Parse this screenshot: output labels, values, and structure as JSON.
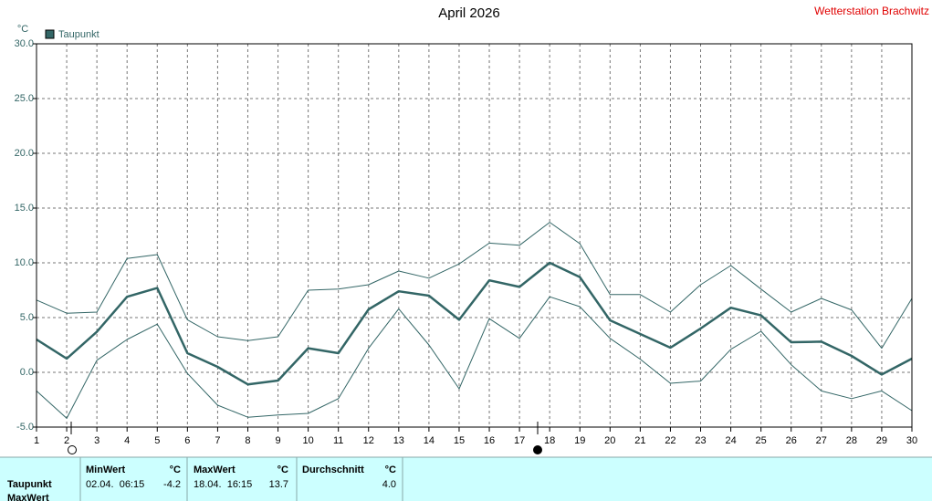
{
  "chart_data": {
    "type": "line",
    "title": "April 2026",
    "source": "Wetterstation Brachwitz",
    "y_unit": "°C",
    "x": [
      1,
      2,
      3,
      4,
      5,
      6,
      7,
      8,
      9,
      10,
      11,
      12,
      13,
      14,
      15,
      16,
      17,
      18,
      19,
      20,
      21,
      22,
      23,
      24,
      25,
      26,
      27,
      28,
      29,
      30
    ],
    "xlim": [
      1,
      30
    ],
    "xticks": [
      1,
      2,
      3,
      4,
      5,
      6,
      7,
      8,
      9,
      10,
      11,
      12,
      13,
      14,
      15,
      16,
      17,
      18,
      19,
      20,
      21,
      22,
      23,
      24,
      25,
      26,
      27,
      28,
      29,
      30
    ],
    "ylim": [
      -5,
      30
    ],
    "yticks": [
      {
        "value": -5,
        "label": "-5.0"
      },
      {
        "value": 0,
        "label": "0.0"
      },
      {
        "value": 5,
        "label": "5.0"
      },
      {
        "value": 10,
        "label": "10.0"
      },
      {
        "value": 15,
        "label": "15.0"
      },
      {
        "value": 20,
        "label": "20.0"
      },
      {
        "value": 25,
        "label": "25.0"
      },
      {
        "value": 30,
        "label": "30.0"
      }
    ],
    "grid": true,
    "series": [
      {
        "name": "Taupunkt",
        "color": "#336666",
        "values": [
          3.0,
          1.25,
          3.7,
          6.9,
          7.7,
          1.75,
          0.5,
          -1.1,
          -0.75,
          2.2,
          1.75,
          5.75,
          7.4,
          7.0,
          4.8,
          8.4,
          7.8,
          10.0,
          8.7,
          4.75,
          3.5,
          2.25,
          4.0,
          5.9,
          5.2,
          2.75,
          2.8,
          1.5,
          -0.2,
          1.25
        ]
      },
      {
        "color": "#336666",
        "values": [
          6.6,
          5.4,
          5.5,
          10.4,
          10.75,
          4.8,
          3.25,
          2.9,
          3.25,
          7.5,
          7.6,
          8.0,
          9.25,
          8.6,
          9.9,
          11.8,
          11.6,
          13.7,
          11.75,
          7.1,
          7.1,
          5.5,
          8.0,
          9.75,
          7.6,
          5.5,
          6.75,
          5.7,
          2.2,
          6.75
        ]
      },
      {
        "color": "#336666",
        "values": [
          -1.7,
          -4.2,
          1.1,
          3.0,
          4.4,
          -0.1,
          -3.0,
          -4.1,
          -3.9,
          -3.75,
          -2.4,
          2.2,
          5.8,
          2.5,
          -1.5,
          4.9,
          3.1,
          6.9,
          6.0,
          3.1,
          1.2,
          -1.0,
          -0.8,
          2.1,
          3.75,
          0.7,
          -1.7,
          -2.4,
          -1.7,
          -3.5
        ]
      }
    ]
  },
  "table": {
    "columns": [
      "MinWert",
      "°C",
      "MaxWert",
      "°C",
      "Durchschnitt",
      "°C"
    ],
    "rows": [
      [
        "Taupunkt",
        "02.04.  06:15",
        "-4.2",
        "18.04.  16:15",
        "13.7",
        "4.0"
      ],
      [
        "MaxWert"
      ]
    ]
  }
}
